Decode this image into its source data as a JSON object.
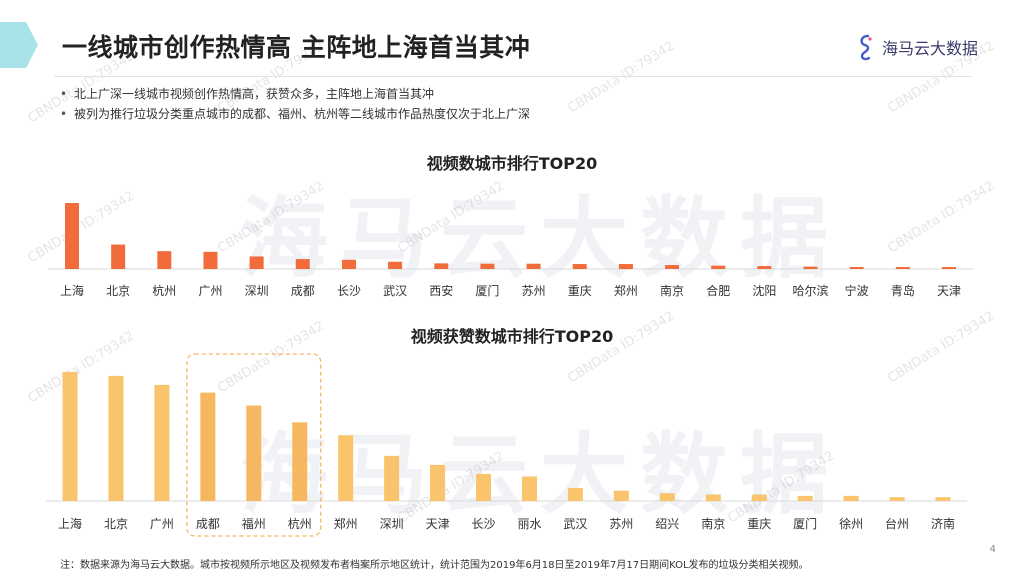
{
  "header": {
    "title": "一线城市创作热情高 主阵地上海首当其冲",
    "logo_text": "海马云大数据",
    "accent_color": "#a8e3ea"
  },
  "bullets": [
    "北上广深一线城市视频创作热情高，获赞众多，主阵地上海首当其冲",
    "被列为推行垃圾分类重点城市的成都、福州、杭州等二线城市作品热度仅次于北上广深"
  ],
  "watermark": {
    "id_text": "CBNData ID:79342",
    "big_text": "海马云大数据"
  },
  "chart_data": [
    {
      "type": "bar",
      "title": "视频数城市排行TOP20",
      "color": "#f26b3a",
      "categories": [
        "上海",
        "北京",
        "杭州",
        "广州",
        "深圳",
        "成都",
        "长沙",
        "武汉",
        "西安",
        "厦门",
        "苏州",
        "重庆",
        "郑州",
        "南京",
        "合肥",
        "沈阳",
        "哈尔滨",
        "宁波",
        "青岛",
        "天津"
      ],
      "values": [
        100,
        37,
        27,
        26,
        19,
        15,
        14,
        11,
        8.5,
        8,
        8,
        7.5,
        7.5,
        6,
        5,
        4.5,
        3.5,
        3,
        3,
        3
      ],
      "xlabel": "",
      "ylabel": "",
      "ylim": [
        0,
        100
      ],
      "grid": false
    },
    {
      "type": "bar",
      "title": "视频获赞数城市排行TOP20",
      "color": "#f9c46b",
      "highlight_color": "#f5b860",
      "categories": [
        "上海",
        "北京",
        "广州",
        "成都",
        "福州",
        "杭州",
        "郑州",
        "深圳",
        "天津",
        "长沙",
        "丽水",
        "武汉",
        "苏州",
        "绍兴",
        "南京",
        "重庆",
        "厦门",
        "徐州",
        "台州",
        "济南"
      ],
      "values": [
        100,
        97,
        90,
        84,
        74,
        61,
        51,
        35,
        28,
        21,
        19,
        10,
        8,
        6,
        5,
        5,
        4,
        4,
        3,
        3
      ],
      "highlighted_categories": [
        "成都",
        "福州",
        "杭州"
      ],
      "xlabel": "",
      "ylabel": "",
      "ylim": [
        0,
        100
      ],
      "grid": false
    }
  ],
  "footnote": "注：数据来源为海马云大数据。城市按视频所示地区及视频发布者档案所示地区统计，统计范围为2019年6月18日至2019年7月17日期间KOL发布的垃圾分类相关视频。",
  "page_number": "4"
}
